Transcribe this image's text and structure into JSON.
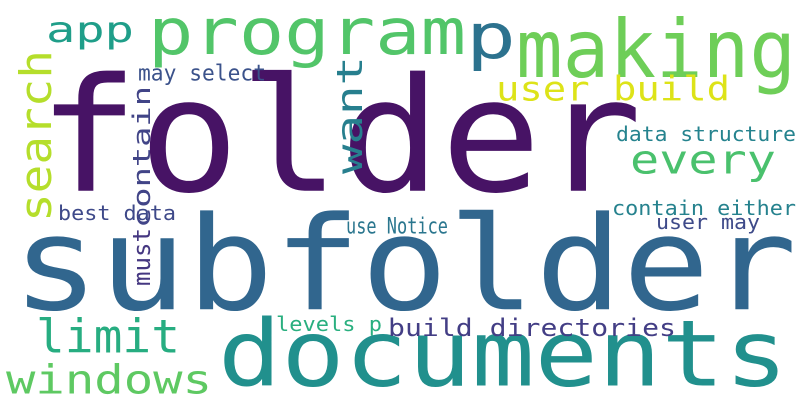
{
  "words": [
    {
      "text": "folder",
      "color": "#471365"
    },
    {
      "text": "subfolder",
      "color": "#31668e"
    },
    {
      "text": "documents",
      "color": "#21908d"
    },
    {
      "text": "program",
      "color": "#52c569"
    },
    {
      "text": "making",
      "color": "#6ece58"
    },
    {
      "text": "p",
      "color": "#2c728e"
    },
    {
      "text": "app",
      "color": "#1f9e89"
    },
    {
      "text": "search",
      "color": "#b5de2b"
    },
    {
      "text": "want",
      "color": "#277f8e"
    },
    {
      "text": "user build",
      "color": "#dde318"
    },
    {
      "text": "every",
      "color": "#4ac16d"
    },
    {
      "text": "may select",
      "color": "#3b528b"
    },
    {
      "text": "must",
      "color": "#453781"
    },
    {
      "text": "contain",
      "color": "#414487"
    },
    {
      "text": "best data",
      "color": "#3e4989"
    },
    {
      "text": "data structure",
      "color": "#25838e"
    },
    {
      "text": "contain either",
      "color": "#26828e"
    },
    {
      "text": "user may",
      "color": "#3e4a89"
    },
    {
      "text": "use Notice",
      "color": "#2a768e"
    },
    {
      "text": "limit",
      "color": "#27ad81"
    },
    {
      "text": "levels p",
      "color": "#29af7f"
    },
    {
      "text": "build directories",
      "color": "#433e85"
    },
    {
      "text": "windows",
      "color": "#5ec962"
    }
  ]
}
